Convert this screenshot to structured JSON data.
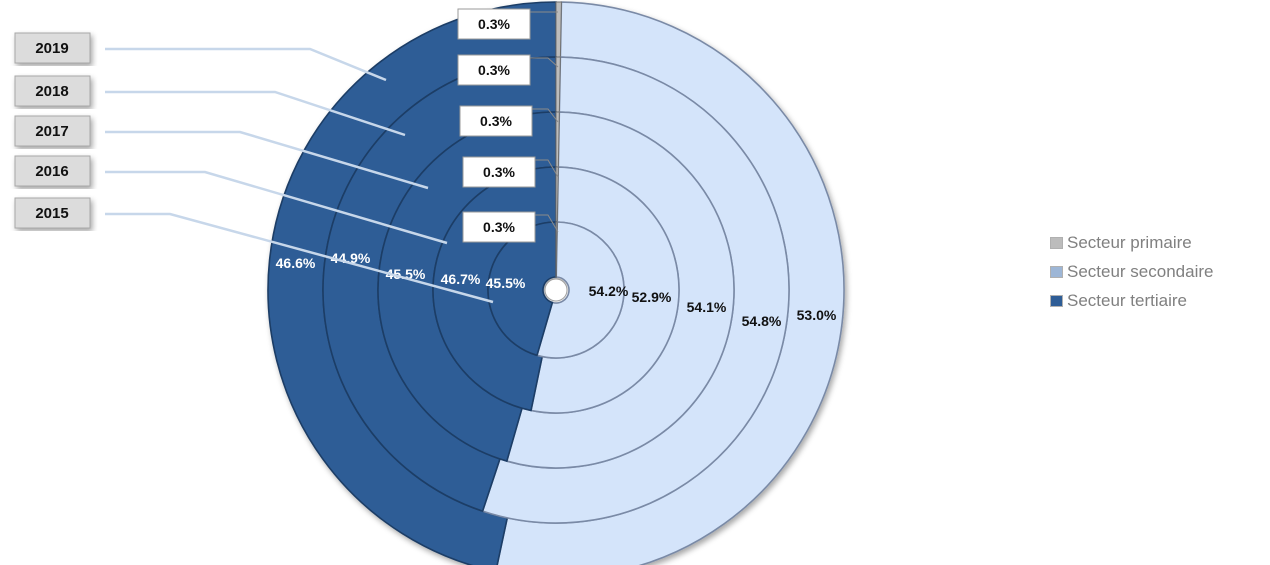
{
  "chart_data": {
    "type": "donut",
    "rings_inner_to_outer": [
      "2015",
      "2016",
      "2017",
      "2018",
      "2019"
    ],
    "categories": [
      "Secteur primaire",
      "Secteur secondaire",
      "Secteur tertiaire"
    ],
    "series": [
      {
        "year": "2015",
        "values": {
          "Secteur primaire": 0.3,
          "Secteur secondaire": 54.2,
          "Secteur tertiaire": 45.5
        }
      },
      {
        "year": "2016",
        "values": {
          "Secteur primaire": 0.3,
          "Secteur secondaire": 52.9,
          "Secteur tertiaire": 46.7
        }
      },
      {
        "year": "2017",
        "values": {
          "Secteur primaire": 0.3,
          "Secteur secondaire": 54.1,
          "Secteur tertiaire": 45.5
        }
      },
      {
        "year": "2018",
        "values": {
          "Secteur primaire": 0.3,
          "Secteur secondaire": 54.8,
          "Secteur tertiaire": 44.9
        }
      },
      {
        "year": "2019",
        "values": {
          "Secteur primaire": 0.3,
          "Secteur secondaire": 53.0,
          "Secteur tertiaire": 46.6
        }
      }
    ],
    "labels": {
      "primaire": [
        "0.3%",
        "0.3%",
        "0.3%",
        "0.3%",
        "0.3%"
      ],
      "secondaire": [
        "54.2%",
        "52.9%",
        "54.1%",
        "54.8%",
        "53.0%"
      ],
      "tertiaire": [
        "45.5%",
        "46.7%",
        "45.5%",
        "44.9%",
        "46.6%"
      ]
    },
    "legend_position": "right",
    "colors": {
      "Secteur primaire": "#bcbcbc",
      "Secteur secondaire": "#d4e4fa",
      "Secteur tertiaire": "#2e5d96"
    }
  }
}
